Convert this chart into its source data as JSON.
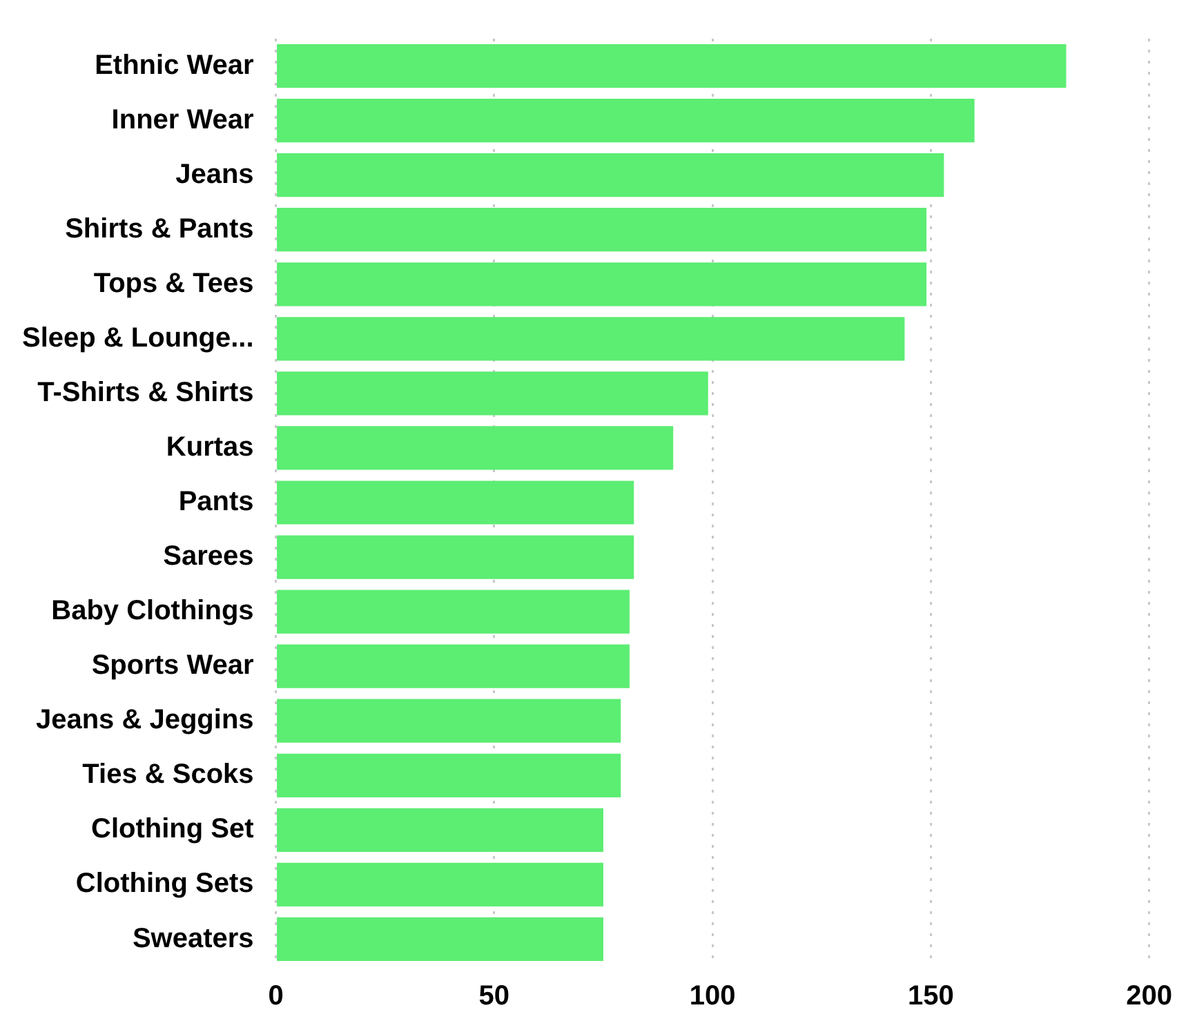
{
  "chart_data": {
    "type": "bar",
    "orientation": "horizontal",
    "categories": [
      "Ethnic Wear",
      "Inner Wear",
      "Jeans",
      "Shirts & Pants",
      "Tops & Tees",
      "Sleep & Lounge...",
      "T-Shirts & Shirts",
      "Kurtas",
      "Pants",
      "Sarees",
      "Baby Clothings",
      "Sports Wear",
      "Jeans & Jeggins",
      "Ties & Scoks",
      "Clothing Set",
      "Clothing Sets",
      "Sweaters"
    ],
    "values": [
      181,
      160,
      153,
      149,
      149,
      144,
      99,
      91,
      82,
      82,
      81,
      81,
      79,
      79,
      75,
      75,
      75
    ],
    "color": "#5ced73",
    "xlim": [
      0,
      200
    ],
    "xticks": [
      0,
      50,
      100,
      150,
      200
    ],
    "grid": "x",
    "legend": false
  }
}
